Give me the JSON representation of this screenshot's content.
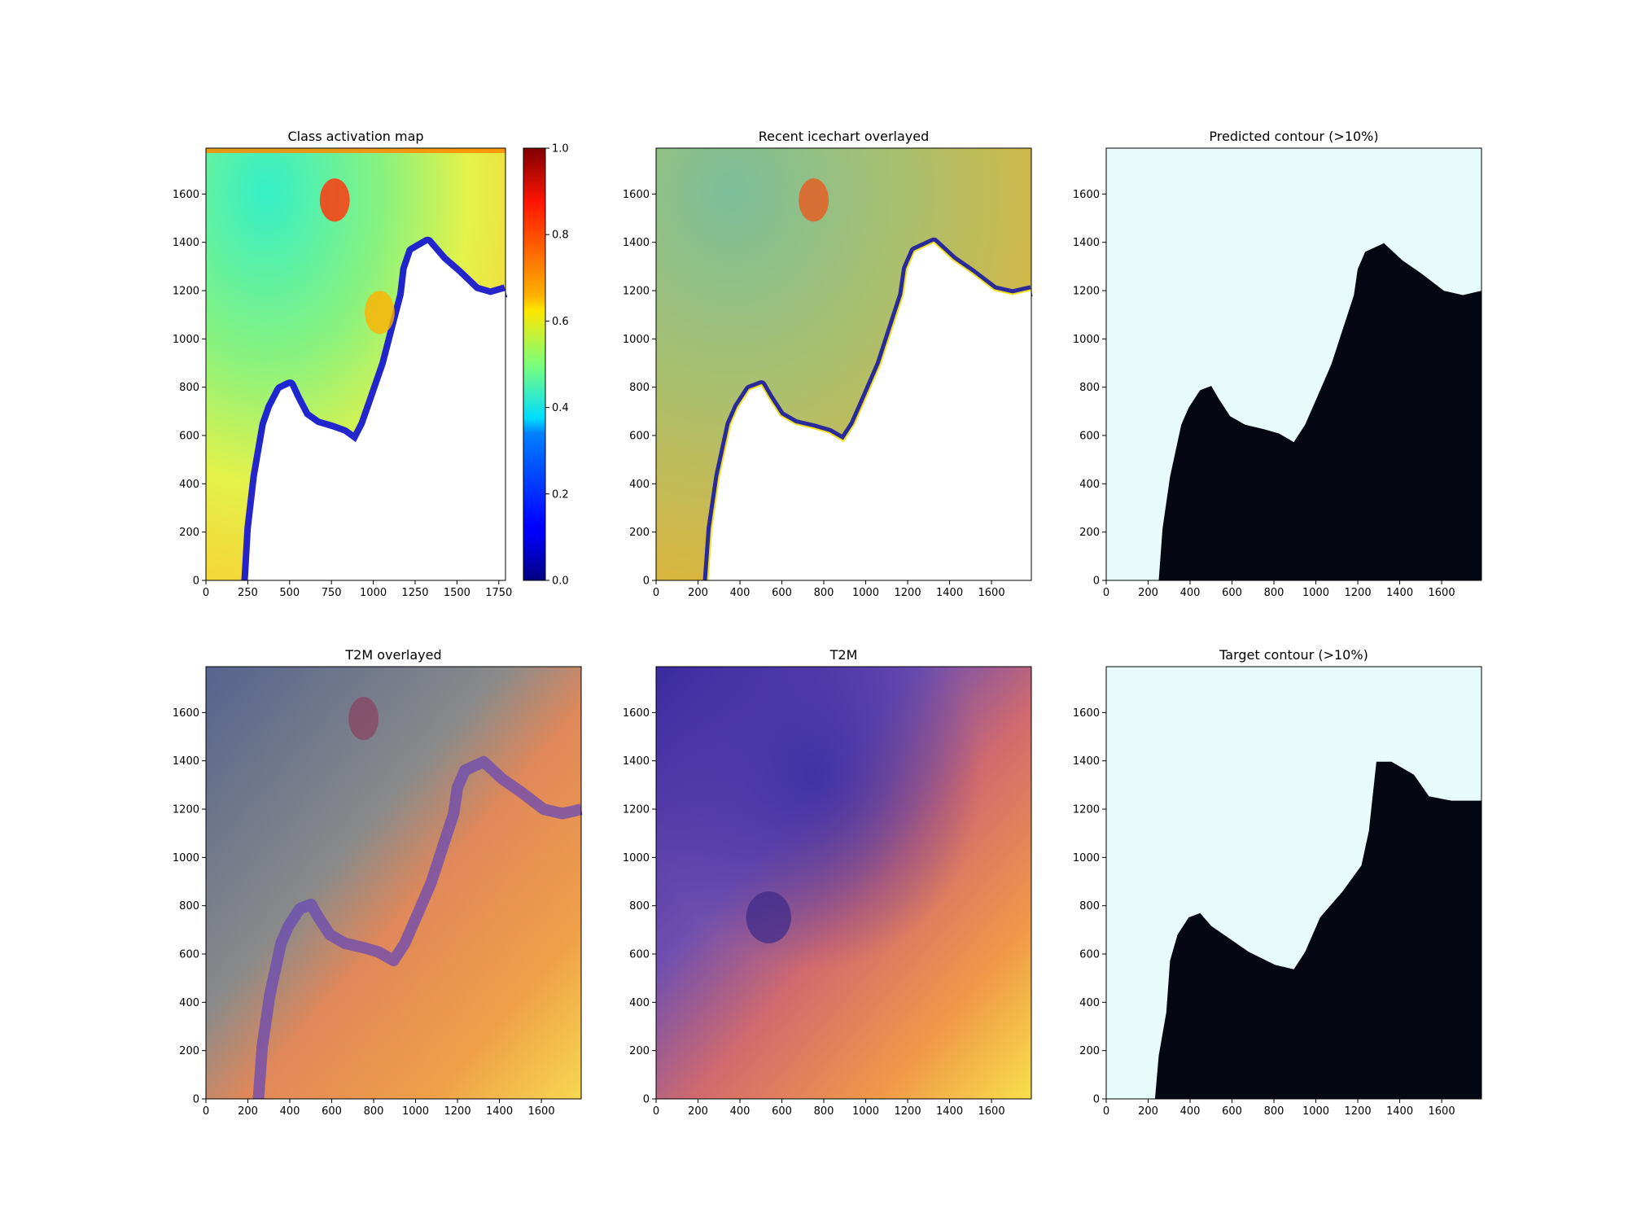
{
  "chart_data": [
    {
      "type": "heatmap",
      "title": "Class activation map",
      "xlim": [
        0,
        1790
      ],
      "ylim": [
        0,
        1790
      ],
      "xticks": [
        0,
        250,
        500,
        750,
        1000,
        1250,
        1500,
        1750
      ],
      "xtick_labels": [
        "0",
        "250",
        "500",
        "750",
        "1000",
        "1250",
        "1500",
        "1750"
      ],
      "yticks": [
        0,
        200,
        400,
        600,
        800,
        1000,
        1200,
        1400,
        1600
      ],
      "ytick_labels": [
        "0",
        "200",
        "400",
        "600",
        "800",
        "1000",
        "1200",
        "1400",
        "1600"
      ],
      "colormap": "jet",
      "colorbar": {
        "range": [
          0.0,
          1.0
        ],
        "ticks": [
          0.0,
          0.2,
          0.4,
          0.6,
          0.8,
          1.0
        ],
        "tick_labels": [
          "0.0",
          "0.2",
          "0.4",
          "0.6",
          "0.8",
          "1.0"
        ]
      }
    },
    {
      "type": "heatmap",
      "title": "Recent icechart overlayed",
      "xlim": [
        0,
        1790
      ],
      "ylim": [
        0,
        1790
      ],
      "xticks": [
        0,
        200,
        400,
        600,
        800,
        1000,
        1200,
        1400,
        1600
      ],
      "xtick_labels": [
        "0",
        "200",
        "400",
        "600",
        "800",
        "1000",
        "1200",
        "1400",
        "1600"
      ],
      "yticks": [
        0,
        200,
        400,
        600,
        800,
        1000,
        1200,
        1400,
        1600
      ],
      "ytick_labels": [
        "0",
        "200",
        "400",
        "600",
        "800",
        "1000",
        "1200",
        "1400",
        "1600"
      ]
    },
    {
      "type": "heatmap",
      "title": "Predicted contour (>10%)",
      "xlim": [
        0,
        1790
      ],
      "ylim": [
        0,
        1790
      ],
      "xticks": [
        0,
        200,
        400,
        600,
        800,
        1000,
        1200,
        1400,
        1600
      ],
      "xtick_labels": [
        "0",
        "200",
        "400",
        "600",
        "800",
        "1000",
        "1200",
        "1400",
        "1600"
      ],
      "yticks": [
        0,
        200,
        400,
        600,
        800,
        1000,
        1200,
        1400,
        1600
      ],
      "ytick_labels": [
        "0",
        "200",
        "400",
        "600",
        "800",
        "1000",
        "1200",
        "1400",
        "1600"
      ],
      "colors": {
        "ice": "#e8fbfb",
        "land": "#050812"
      }
    },
    {
      "type": "heatmap",
      "title": "T2M overlayed",
      "xlim": [
        0,
        1790
      ],
      "ylim": [
        0,
        1790
      ],
      "xticks": [
        0,
        200,
        400,
        600,
        800,
        1000,
        1200,
        1400,
        1600
      ],
      "xtick_labels": [
        "0",
        "200",
        "400",
        "600",
        "800",
        "1000",
        "1200",
        "1400",
        "1600"
      ],
      "yticks": [
        0,
        200,
        400,
        600,
        800,
        1000,
        1200,
        1400,
        1600
      ],
      "ytick_labels": [
        "0",
        "200",
        "400",
        "600",
        "800",
        "1000",
        "1200",
        "1400",
        "1600"
      ]
    },
    {
      "type": "heatmap",
      "title": "T2M",
      "xlim": [
        0,
        1790
      ],
      "ylim": [
        0,
        1790
      ],
      "xticks": [
        0,
        200,
        400,
        600,
        800,
        1000,
        1200,
        1400,
        1600
      ],
      "xtick_labels": [
        "0",
        "200",
        "400",
        "600",
        "800",
        "1000",
        "1200",
        "1400",
        "1600"
      ],
      "yticks": [
        0,
        200,
        400,
        600,
        800,
        1000,
        1200,
        1400,
        1600
      ],
      "ytick_labels": [
        "0",
        "200",
        "400",
        "600",
        "800",
        "1000",
        "1200",
        "1400",
        "1600"
      ],
      "colormap": "plasma"
    },
    {
      "type": "heatmap",
      "title": "Target contour (>10%)",
      "xlim": [
        0,
        1790
      ],
      "ylim": [
        0,
        1790
      ],
      "xticks": [
        0,
        200,
        400,
        600,
        800,
        1000,
        1200,
        1400,
        1600
      ],
      "xtick_labels": [
        "0",
        "200",
        "400",
        "600",
        "800",
        "1000",
        "1200",
        "1400",
        "1600"
      ],
      "yticks": [
        0,
        200,
        400,
        600,
        800,
        1000,
        1200,
        1400,
        1600
      ],
      "ytick_labels": [
        "0",
        "200",
        "400",
        "600",
        "800",
        "1000",
        "1200",
        "1400",
        "1600"
      ],
      "colors": {
        "ice": "#e8fbfb",
        "land": "#050812"
      }
    }
  ]
}
